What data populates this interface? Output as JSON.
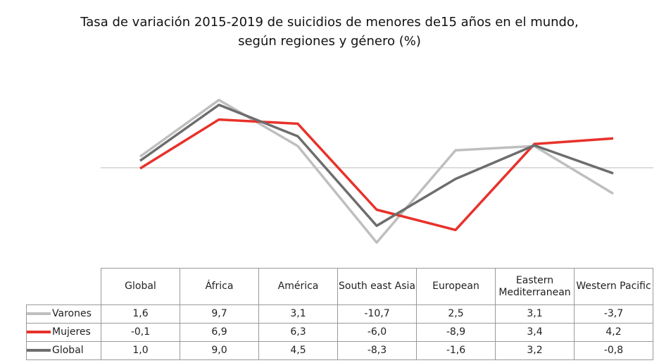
{
  "chart_data": {
    "type": "line",
    "title": "Tasa de variación 2015-2019 de suicidios de menores de15 años en el mundo, según regiones y género (%)",
    "categories": [
      "Global",
      "África",
      "América",
      "South east Asia",
      "European",
      "Eastern Mediterranean",
      "Western Pacific"
    ],
    "series": [
      {
        "name": "Varones",
        "color": "#bfbfbf",
        "values": [
          1.6,
          9.7,
          3.1,
          -10.7,
          2.5,
          3.1,
          -3.7
        ],
        "value_labels": [
          "1,6",
          "9,7",
          "3,1",
          "-10,7",
          "2,5",
          "3,1",
          "-3,7"
        ]
      },
      {
        "name": "Mujeres",
        "color": "#e8312a",
        "values": [
          -0.1,
          6.9,
          6.3,
          -6.0,
          -8.9,
          3.4,
          4.2
        ],
        "value_labels": [
          "-0,1",
          "6,9",
          "6,3",
          "-6,0",
          "-8,9",
          "3,4",
          "4,2"
        ]
      },
      {
        "name": "Global",
        "color": "#6d6d6e",
        "values": [
          1.0,
          9.0,
          4.5,
          -8.3,
          -1.6,
          3.2,
          -0.8
        ],
        "value_labels": [
          "1,0",
          "9,0",
          "4,5",
          "-8,3",
          "-1,6",
          "3,2",
          "-0,8"
        ]
      }
    ],
    "ylim": [
      -12,
      12
    ],
    "yticks": [
      0
    ],
    "grid": true
  }
}
